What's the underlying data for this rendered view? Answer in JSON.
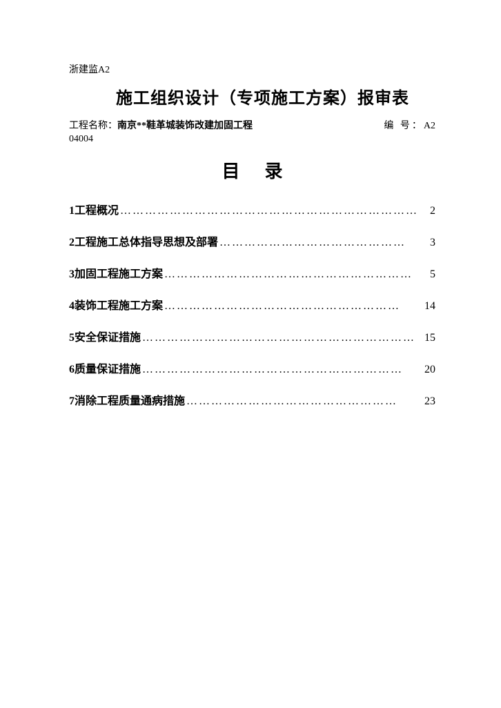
{
  "header": {
    "doc_code": "浙建监A2",
    "title": "施工组织设计（专项施工方案）报审表",
    "project_label": "工程名称：",
    "project_value": "南京**鞋革城装饰改建加固工程",
    "number_label": "编  号：",
    "number_value": "A2",
    "sub_code": "04004"
  },
  "toc": {
    "title": "目录",
    "items": [
      {
        "num": "1",
        "text": "工程概况",
        "page": "2"
      },
      {
        "num": "2",
        "text": "工程施工总体指导思想及部署",
        "page": "3"
      },
      {
        "num": "3",
        "text": "加固工程施工方案",
        "page": "5"
      },
      {
        "num": "4",
        "text": "装饰工程施工方案",
        "page": "14"
      },
      {
        "num": "5",
        "text": "安全保证措施",
        "page": "15"
      },
      {
        "num": "6",
        "text": "质量保证措施",
        "page": "20"
      },
      {
        "num": "7",
        "text": "消除工程质量通病措施",
        "page": "23"
      }
    ]
  },
  "style": {
    "background_color": "#ffffff",
    "text_color": "#000000",
    "title_fontsize": 24,
    "toc_title_fontsize": 26,
    "toc_item_fontsize": 16,
    "body_fontsize": 14
  }
}
